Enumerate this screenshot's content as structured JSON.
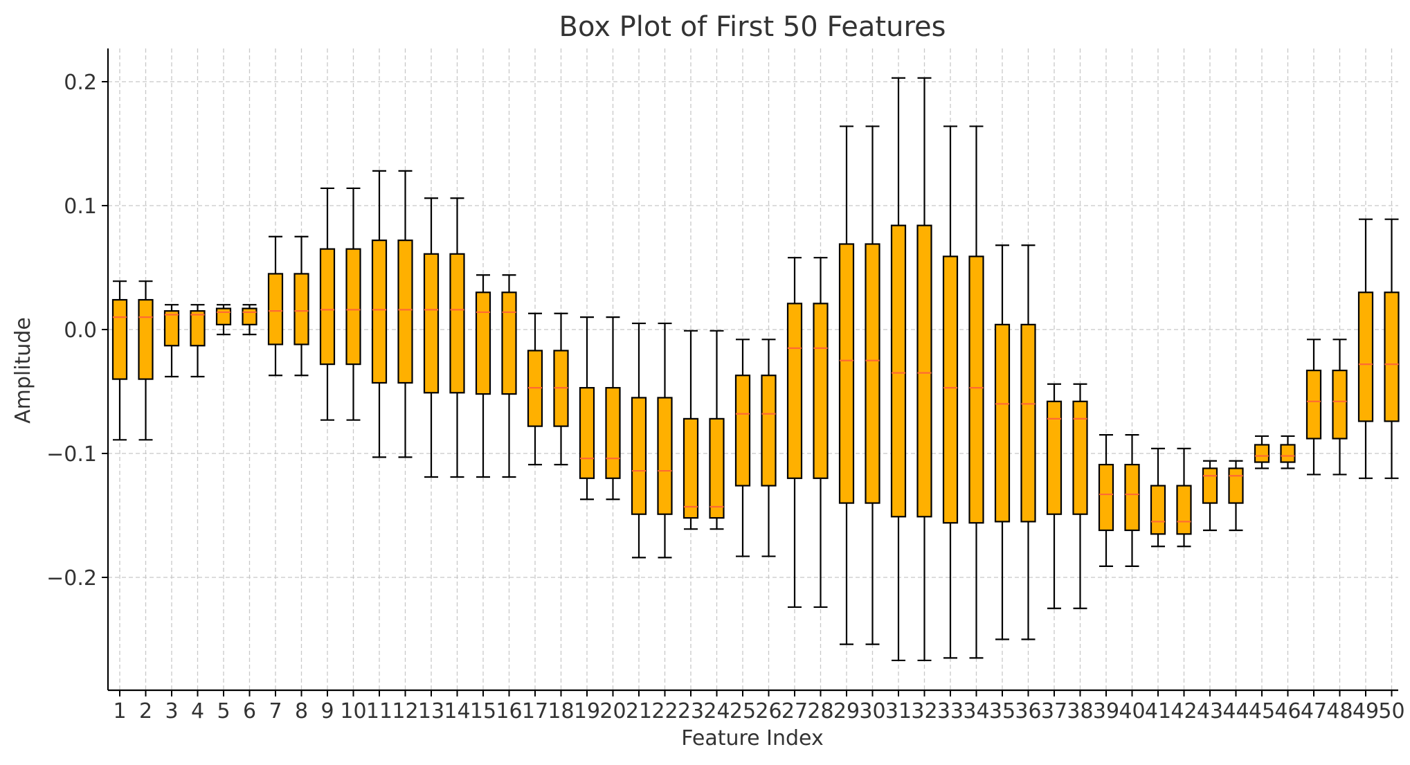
{
  "chart_data": {
    "type": "box",
    "title": "Box Plot of First 50 Features",
    "xlabel": "Feature Index",
    "ylabel": "Amplitude",
    "ylim": [
      -0.29,
      0.225
    ],
    "yticks": [
      0.2,
      0.1,
      0.0,
      -0.1,
      -0.2
    ],
    "ytick_labels": [
      "0.2",
      "0.1",
      "0.0",
      "−0.1",
      "−0.2"
    ],
    "grid": true,
    "colors": {
      "box_fill": "#FFB000",
      "median": "#FF6A33",
      "edges": "#000000",
      "grid": "#c8c8c8"
    },
    "categories": [
      "1",
      "2",
      "3",
      "4",
      "5",
      "6",
      "7",
      "8",
      "9",
      "10",
      "11",
      "12",
      "13",
      "14",
      "15",
      "16",
      "17",
      "18",
      "19",
      "20",
      "21",
      "22",
      "23",
      "24",
      "25",
      "26",
      "27",
      "28",
      "29",
      "30",
      "31",
      "32",
      "33",
      "34",
      "35",
      "36",
      "37",
      "38",
      "39",
      "40",
      "41",
      "42",
      "43",
      "44",
      "45",
      "46",
      "47",
      "48",
      "49",
      "50"
    ],
    "boxes": [
      {
        "min": -0.089,
        "q1": -0.04,
        "median": 0.01,
        "q3": 0.024,
        "max": 0.039
      },
      {
        "min": -0.089,
        "q1": -0.04,
        "median": 0.01,
        "q3": 0.024,
        "max": 0.039
      },
      {
        "min": -0.038,
        "q1": -0.013,
        "median": 0.012,
        "q3": 0.015,
        "max": 0.02
      },
      {
        "min": -0.038,
        "q1": -0.013,
        "median": 0.012,
        "q3": 0.015,
        "max": 0.02
      },
      {
        "min": -0.004,
        "q1": 0.004,
        "median": 0.014,
        "q3": 0.017,
        "max": 0.02
      },
      {
        "min": -0.004,
        "q1": 0.004,
        "median": 0.014,
        "q3": 0.017,
        "max": 0.02
      },
      {
        "min": -0.037,
        "q1": -0.012,
        "median": 0.015,
        "q3": 0.045,
        "max": 0.075
      },
      {
        "min": -0.037,
        "q1": -0.012,
        "median": 0.015,
        "q3": 0.045,
        "max": 0.075
      },
      {
        "min": -0.073,
        "q1": -0.028,
        "median": 0.016,
        "q3": 0.065,
        "max": 0.114
      },
      {
        "min": -0.073,
        "q1": -0.028,
        "median": 0.016,
        "q3": 0.065,
        "max": 0.114
      },
      {
        "min": -0.103,
        "q1": -0.043,
        "median": 0.016,
        "q3": 0.072,
        "max": 0.128
      },
      {
        "min": -0.103,
        "q1": -0.043,
        "median": 0.016,
        "q3": 0.072,
        "max": 0.128
      },
      {
        "min": -0.119,
        "q1": -0.051,
        "median": 0.016,
        "q3": 0.061,
        "max": 0.106
      },
      {
        "min": -0.119,
        "q1": -0.051,
        "median": 0.016,
        "q3": 0.061,
        "max": 0.106
      },
      {
        "min": -0.119,
        "q1": -0.052,
        "median": 0.014,
        "q3": 0.03,
        "max": 0.044
      },
      {
        "min": -0.119,
        "q1": -0.052,
        "median": 0.014,
        "q3": 0.03,
        "max": 0.044
      },
      {
        "min": -0.109,
        "q1": -0.078,
        "median": -0.047,
        "q3": -0.017,
        "max": 0.013
      },
      {
        "min": -0.109,
        "q1": -0.078,
        "median": -0.047,
        "q3": -0.017,
        "max": 0.013
      },
      {
        "min": -0.137,
        "q1": -0.12,
        "median": -0.104,
        "q3": -0.047,
        "max": 0.01
      },
      {
        "min": -0.137,
        "q1": -0.12,
        "median": -0.104,
        "q3": -0.047,
        "max": 0.01
      },
      {
        "min": -0.184,
        "q1": -0.149,
        "median": -0.114,
        "q3": -0.055,
        "max": 0.005
      },
      {
        "min": -0.184,
        "q1": -0.149,
        "median": -0.114,
        "q3": -0.055,
        "max": 0.005
      },
      {
        "min": -0.161,
        "q1": -0.152,
        "median": -0.143,
        "q3": -0.072,
        "max": -0.001
      },
      {
        "min": -0.161,
        "q1": -0.152,
        "median": -0.143,
        "q3": -0.072,
        "max": -0.001
      },
      {
        "min": -0.183,
        "q1": -0.126,
        "median": -0.068,
        "q3": -0.037,
        "max": -0.008
      },
      {
        "min": -0.183,
        "q1": -0.126,
        "median": -0.068,
        "q3": -0.037,
        "max": -0.008
      },
      {
        "min": -0.224,
        "q1": -0.12,
        "median": -0.015,
        "q3": 0.021,
        "max": 0.058
      },
      {
        "min": -0.224,
        "q1": -0.12,
        "median": -0.015,
        "q3": 0.021,
        "max": 0.058
      },
      {
        "min": -0.254,
        "q1": -0.14,
        "median": -0.025,
        "q3": 0.069,
        "max": 0.164
      },
      {
        "min": -0.254,
        "q1": -0.14,
        "median": -0.025,
        "q3": 0.069,
        "max": 0.164
      },
      {
        "min": -0.267,
        "q1": -0.151,
        "median": -0.035,
        "q3": 0.084,
        "max": 0.203
      },
      {
        "min": -0.267,
        "q1": -0.151,
        "median": -0.035,
        "q3": 0.084,
        "max": 0.203
      },
      {
        "min": -0.265,
        "q1": -0.156,
        "median": -0.047,
        "q3": 0.059,
        "max": 0.164
      },
      {
        "min": -0.265,
        "q1": -0.156,
        "median": -0.047,
        "q3": 0.059,
        "max": 0.164
      },
      {
        "min": -0.25,
        "q1": -0.155,
        "median": -0.06,
        "q3": 0.004,
        "max": 0.068
      },
      {
        "min": -0.25,
        "q1": -0.155,
        "median": -0.06,
        "q3": 0.004,
        "max": 0.068
      },
      {
        "min": -0.225,
        "q1": -0.149,
        "median": -0.072,
        "q3": -0.058,
        "max": -0.044
      },
      {
        "min": -0.225,
        "q1": -0.149,
        "median": -0.072,
        "q3": -0.058,
        "max": -0.044
      },
      {
        "min": -0.191,
        "q1": -0.162,
        "median": -0.133,
        "q3": -0.109,
        "max": -0.085
      },
      {
        "min": -0.191,
        "q1": -0.162,
        "median": -0.133,
        "q3": -0.109,
        "max": -0.085
      },
      {
        "min": -0.175,
        "q1": -0.165,
        "median": -0.155,
        "q3": -0.126,
        "max": -0.096
      },
      {
        "min": -0.175,
        "q1": -0.165,
        "median": -0.155,
        "q3": -0.126,
        "max": -0.096
      },
      {
        "min": -0.162,
        "q1": -0.14,
        "median": -0.118,
        "q3": -0.112,
        "max": -0.106
      },
      {
        "min": -0.162,
        "q1": -0.14,
        "median": -0.118,
        "q3": -0.112,
        "max": -0.106
      },
      {
        "min": -0.112,
        "q1": -0.107,
        "median": -0.102,
        "q3": -0.093,
        "max": -0.086
      },
      {
        "min": -0.112,
        "q1": -0.107,
        "median": -0.102,
        "q3": -0.093,
        "max": -0.086
      },
      {
        "min": -0.117,
        "q1": -0.088,
        "median": -0.058,
        "q3": -0.033,
        "max": -0.008
      },
      {
        "min": -0.117,
        "q1": -0.088,
        "median": -0.058,
        "q3": -0.033,
        "max": -0.008
      },
      {
        "min": -0.12,
        "q1": -0.074,
        "median": -0.028,
        "q3": 0.03,
        "max": 0.089
      },
      {
        "min": -0.12,
        "q1": -0.074,
        "median": -0.028,
        "q3": 0.03,
        "max": 0.089
      }
    ]
  }
}
